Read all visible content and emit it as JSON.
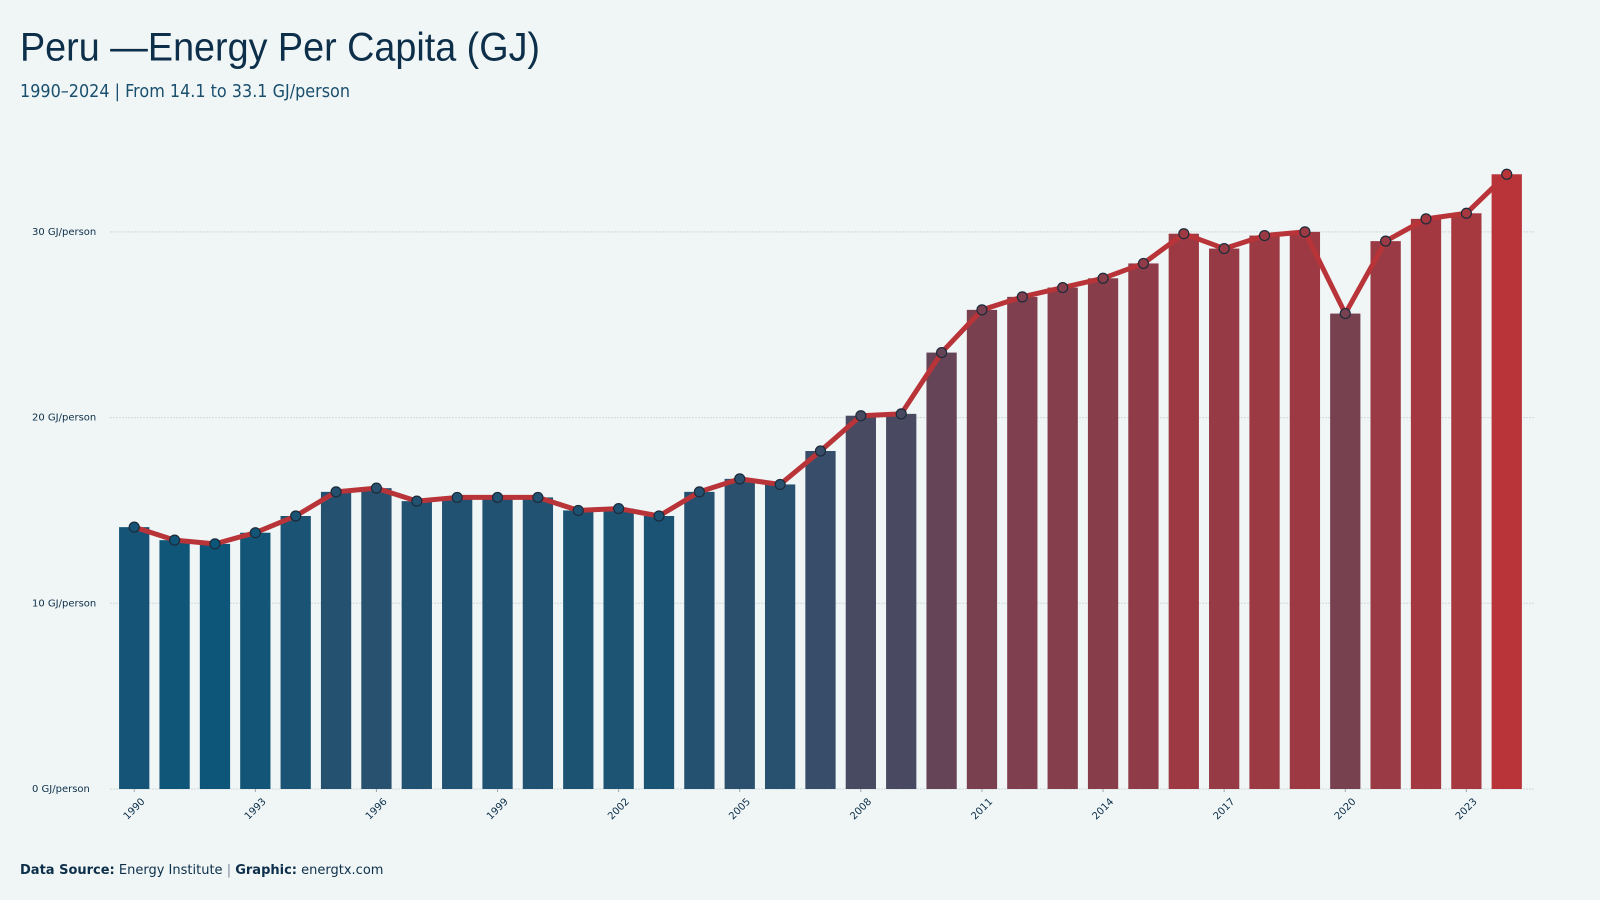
{
  "chart_data": {
    "type": "bar",
    "title": "Peru —Energy Per Capita (GJ)",
    "subtitle": "1990–2024 | From 14.1 to 33.1 GJ/person",
    "x": [
      1990,
      1991,
      1992,
      1993,
      1994,
      1995,
      1996,
      1997,
      1998,
      1999,
      2000,
      2001,
      2002,
      2003,
      2004,
      2005,
      2006,
      2007,
      2008,
      2009,
      2010,
      2011,
      2012,
      2013,
      2014,
      2015,
      2016,
      2017,
      2018,
      2019,
      2020,
      2021,
      2022,
      2023,
      2024
    ],
    "values": [
      14.1,
      13.4,
      13.2,
      13.8,
      14.7,
      16.0,
      16.2,
      15.5,
      15.7,
      15.7,
      15.7,
      15.0,
      15.1,
      14.7,
      16.0,
      16.7,
      16.4,
      18.2,
      20.1,
      20.2,
      23.5,
      25.8,
      26.5,
      27.0,
      27.5,
      28.3,
      29.9,
      29.1,
      29.8,
      30.0,
      25.6,
      29.5,
      30.7,
      31.0,
      33.1
    ],
    "xlim": [
      1989.4,
      2024.7
    ],
    "xticks": [
      1990,
      1993,
      1996,
      1999,
      2002,
      2005,
      2008,
      2011,
      2014,
      2017,
      2020,
      2023
    ],
    "ylim": [
      0,
      35
    ],
    "yticks": [
      {
        "value": 0,
        "label": "0 GJ/person"
      },
      {
        "value": 10,
        "label": "10 GJ/person"
      },
      {
        "value": 20,
        "label": "20 GJ/person"
      },
      {
        "value": 30,
        "label": "30 GJ/person"
      }
    ],
    "color_scale": [
      "#0d5679",
      "#b83438"
    ],
    "line": true,
    "line_color": "#b83438",
    "grid": true,
    "footer": {
      "source_label": "Data Source:",
      "source": "Energy Institute",
      "separator": "|",
      "graphic_label": "Graphic:",
      "graphic": "energtx.com"
    }
  }
}
